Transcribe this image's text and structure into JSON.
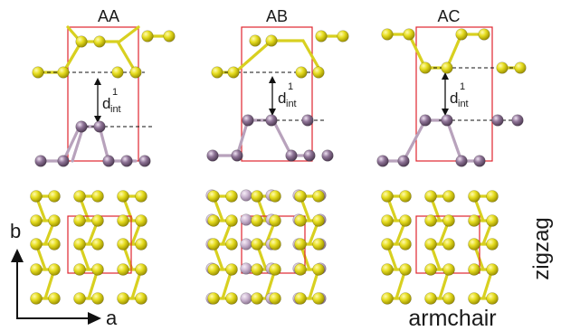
{
  "panel_titles": [
    "AA",
    "AB",
    "AC"
  ],
  "spacing_label": {
    "main": "d",
    "sup": "1",
    "sub": "int"
  },
  "axis_labels": {
    "b": "b",
    "a": "a"
  },
  "direction_labels": {
    "zigzag": "zigzag",
    "armchair": "armchair"
  },
  "colors": {
    "yellow_atom": "#e4dc1c",
    "purple_atom": "#8d7295",
    "yellow_bond": "#d8d020",
    "purple_bond": "#b8a2bc",
    "unit_cell": "#e0262e"
  },
  "icons": [
    "arrow-up-icon",
    "arrow-right-icon"
  ]
}
